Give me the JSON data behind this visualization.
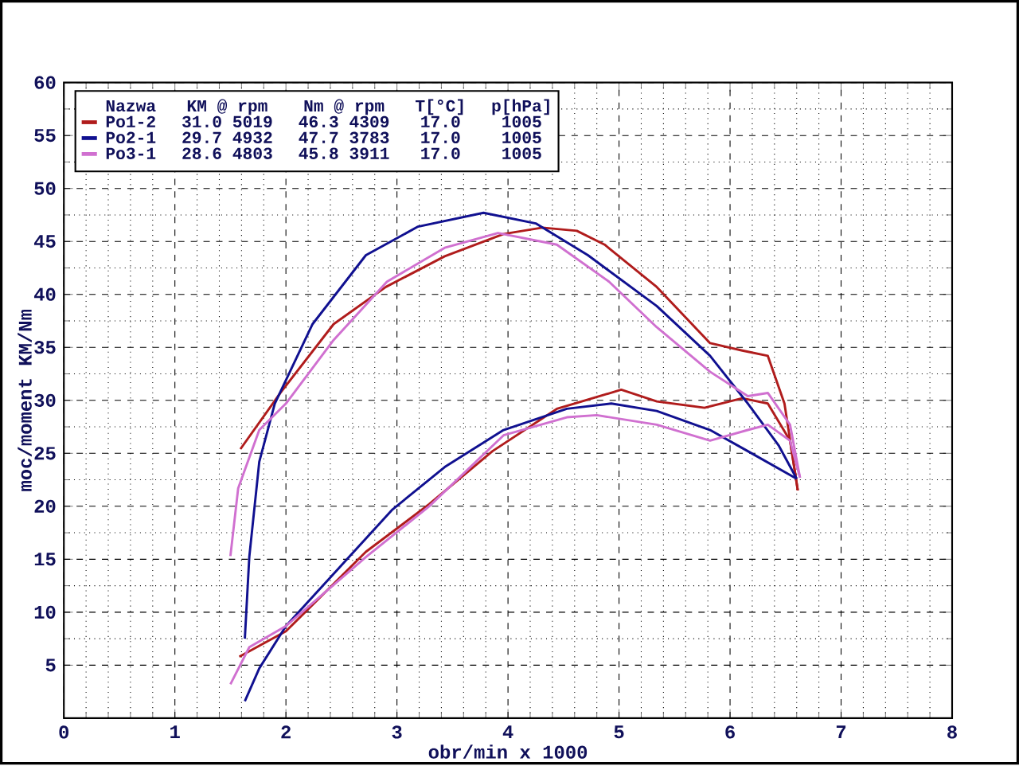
{
  "chart_data": {
    "type": "line",
    "xlabel": "obr/min x 1000",
    "ylabel": "moc/moment KM/Nm",
    "xlim": [
      0,
      8
    ],
    "ylim": [
      0,
      60
    ],
    "xticks": [
      0,
      1,
      2,
      3,
      4,
      5,
      6,
      7,
      8
    ],
    "yticks": [
      5,
      10,
      15,
      20,
      25,
      30,
      35,
      40,
      45,
      50,
      55,
      60
    ],
    "grid": true,
    "legend": "top left",
    "marker": "none",
    "line_style": "solid",
    "legend_title": "Nazwa",
    "annotations": [
      "KM @ rpm",
      "Nm @ rpm",
      "T[°C]",
      "p[hPa]",
      "31.0 5019",
      "46.3 4309",
      "17.0",
      "1005",
      "29.7 4932",
      "47.7 3783",
      "17.0",
      "1005",
      "28.6 4803",
      "45.8 3911",
      "17.0",
      "1005"
    ],
    "series": [
      {
        "name": "Po1-2",
        "color": "#b01c1c",
        "x": [
          1.59,
          1.95,
          2.43,
          2.9,
          3.43,
          3.96,
          4.31,
          4.62,
          4.87,
          5.34,
          5.82,
          6.11,
          6.34,
          6.49,
          6.61
        ],
        "values": [
          25.4,
          30.7,
          37.2,
          40.7,
          43.6,
          45.7,
          46.3,
          46.0,
          44.7,
          40.7,
          35.4,
          34.7,
          34.2,
          29.7,
          21.5
        ]
      },
      {
        "color": "#b01c1c",
        "x": [
          1.58,
          2.0,
          2.72,
          3.29,
          3.86,
          4.44,
          5.02,
          5.34,
          5.77,
          6.11,
          6.34,
          6.54,
          6.61
        ],
        "values": [
          5.8,
          8.2,
          15.7,
          20.2,
          25.2,
          29.2,
          31.0,
          29.9,
          29.3,
          30.2,
          29.7,
          26.2,
          21.5
        ]
      },
      {
        "name": "Po2-1",
        "color": "#101090",
        "x": [
          1.63,
          1.67,
          1.76,
          1.9,
          2.24,
          2.72,
          3.19,
          3.78,
          4.25,
          4.72,
          5.34,
          5.82,
          6.16,
          6.44,
          6.6
        ],
        "values": [
          7.5,
          15.2,
          24.2,
          29.7,
          37.2,
          43.7,
          46.4,
          47.7,
          46.7,
          43.7,
          38.9,
          34.2,
          29.7,
          25.7,
          22.6
        ]
      },
      {
        "color": "#101090",
        "x": [
          1.63,
          1.76,
          2.0,
          2.48,
          2.96,
          3.43,
          3.96,
          4.53,
          4.93,
          5.34,
          5.82,
          6.16,
          6.6
        ],
        "values": [
          1.6,
          4.7,
          8.7,
          14.2,
          19.7,
          23.7,
          27.2,
          29.2,
          29.7,
          29.0,
          27.2,
          25.2,
          22.6
        ]
      },
      {
        "name": "Po3-1",
        "color": "#d070d0",
        "x": [
          1.5,
          1.57,
          1.76,
          2.0,
          2.43,
          2.91,
          3.43,
          3.91,
          4.44,
          4.91,
          5.34,
          5.82,
          6.16,
          6.34,
          6.54,
          6.63
        ],
        "values": [
          15.3,
          21.7,
          27.2,
          29.7,
          35.7,
          41.2,
          44.4,
          45.8,
          44.7,
          41.2,
          36.9,
          32.7,
          30.4,
          30.7,
          27.7,
          22.7
        ]
      },
      {
        "color": "#d070d0",
        "x": [
          1.5,
          1.67,
          2.0,
          2.72,
          3.29,
          3.96,
          4.53,
          4.8,
          5.34,
          5.82,
          6.16,
          6.34,
          6.54,
          6.63
        ],
        "values": [
          3.2,
          6.7,
          8.7,
          15.2,
          20.0,
          26.7,
          28.4,
          28.6,
          27.7,
          26.2,
          27.2,
          27.7,
          26.2,
          22.7
        ]
      }
    ]
  }
}
